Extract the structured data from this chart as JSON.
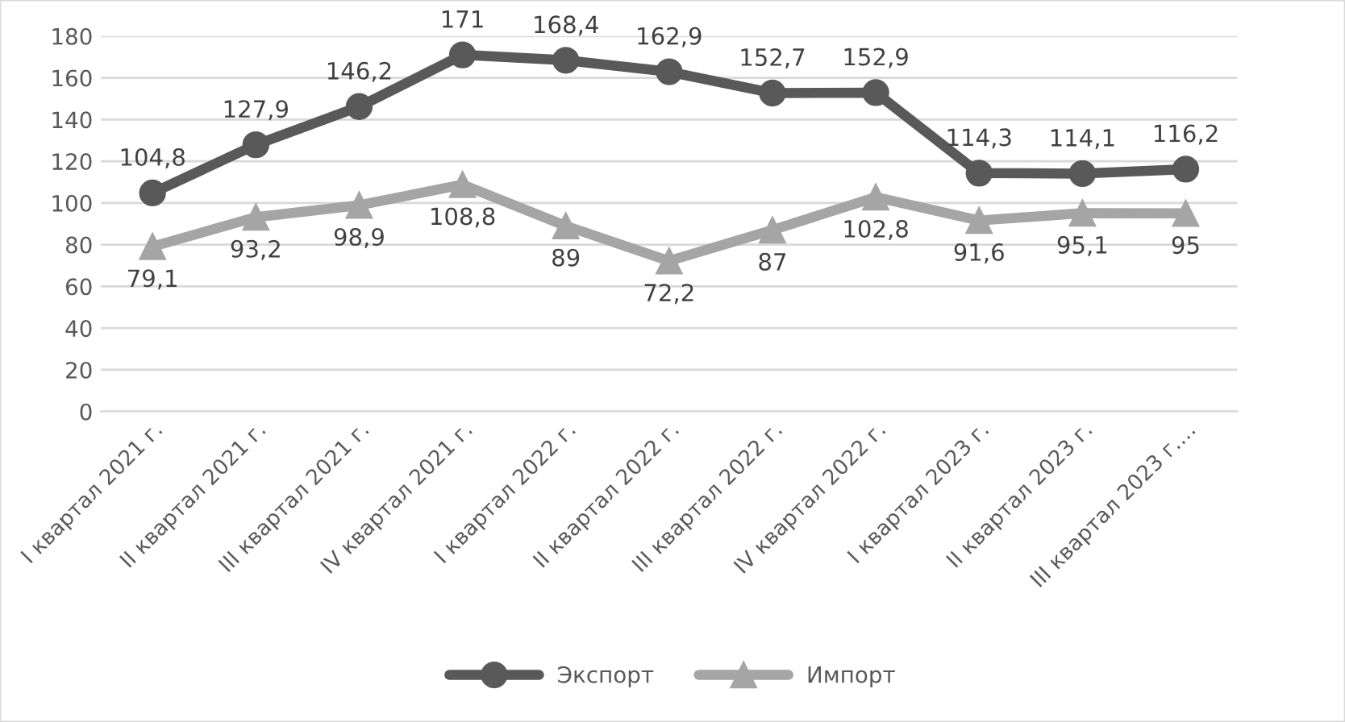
{
  "chart_data": {
    "type": "line",
    "categories": [
      "I квартал 2021 г.",
      "II квартал 2021 г.",
      "III квартал 2021 г.",
      "IV квартал 2021 г.",
      "I квартал 2022 г.",
      "II квартал 2022 г.",
      "III квартал 2022 г.",
      "IV квартал 2022 г.",
      "I квартал 2023 г.",
      "II квартал 2023 г.",
      "III квартал 2023 г.…"
    ],
    "series": [
      {
        "name": "Экспорт",
        "color": "#595959",
        "marker": "circle",
        "values": [
          104.8,
          127.9,
          146.2,
          171,
          168.4,
          162.9,
          152.7,
          152.9,
          114.3,
          114.1,
          116.2
        ],
        "value_labels": [
          "104,8",
          "127,9",
          "146,2",
          "171",
          "168,4",
          "162,9",
          "152,7",
          "152,9",
          "114,3",
          "114,1",
          "116,2"
        ]
      },
      {
        "name": "Импорт",
        "color": "#a5a5a5",
        "marker": "triangle",
        "values": [
          79.1,
          93.2,
          98.9,
          108.8,
          89,
          72.2,
          87,
          102.8,
          91.6,
          95.1,
          95
        ],
        "value_labels": [
          "79,1",
          "93,2",
          "98,9",
          "108,8",
          "89",
          "72,2",
          "87",
          "102,8",
          "91,6",
          "95,1",
          "95"
        ]
      }
    ],
    "ylim": [
      0,
      180
    ],
    "yticks": [
      0,
      20,
      40,
      60,
      80,
      100,
      120,
      140,
      160,
      180
    ],
    "grid": "y",
    "legend": "bottom",
    "line_style": "solid"
  }
}
